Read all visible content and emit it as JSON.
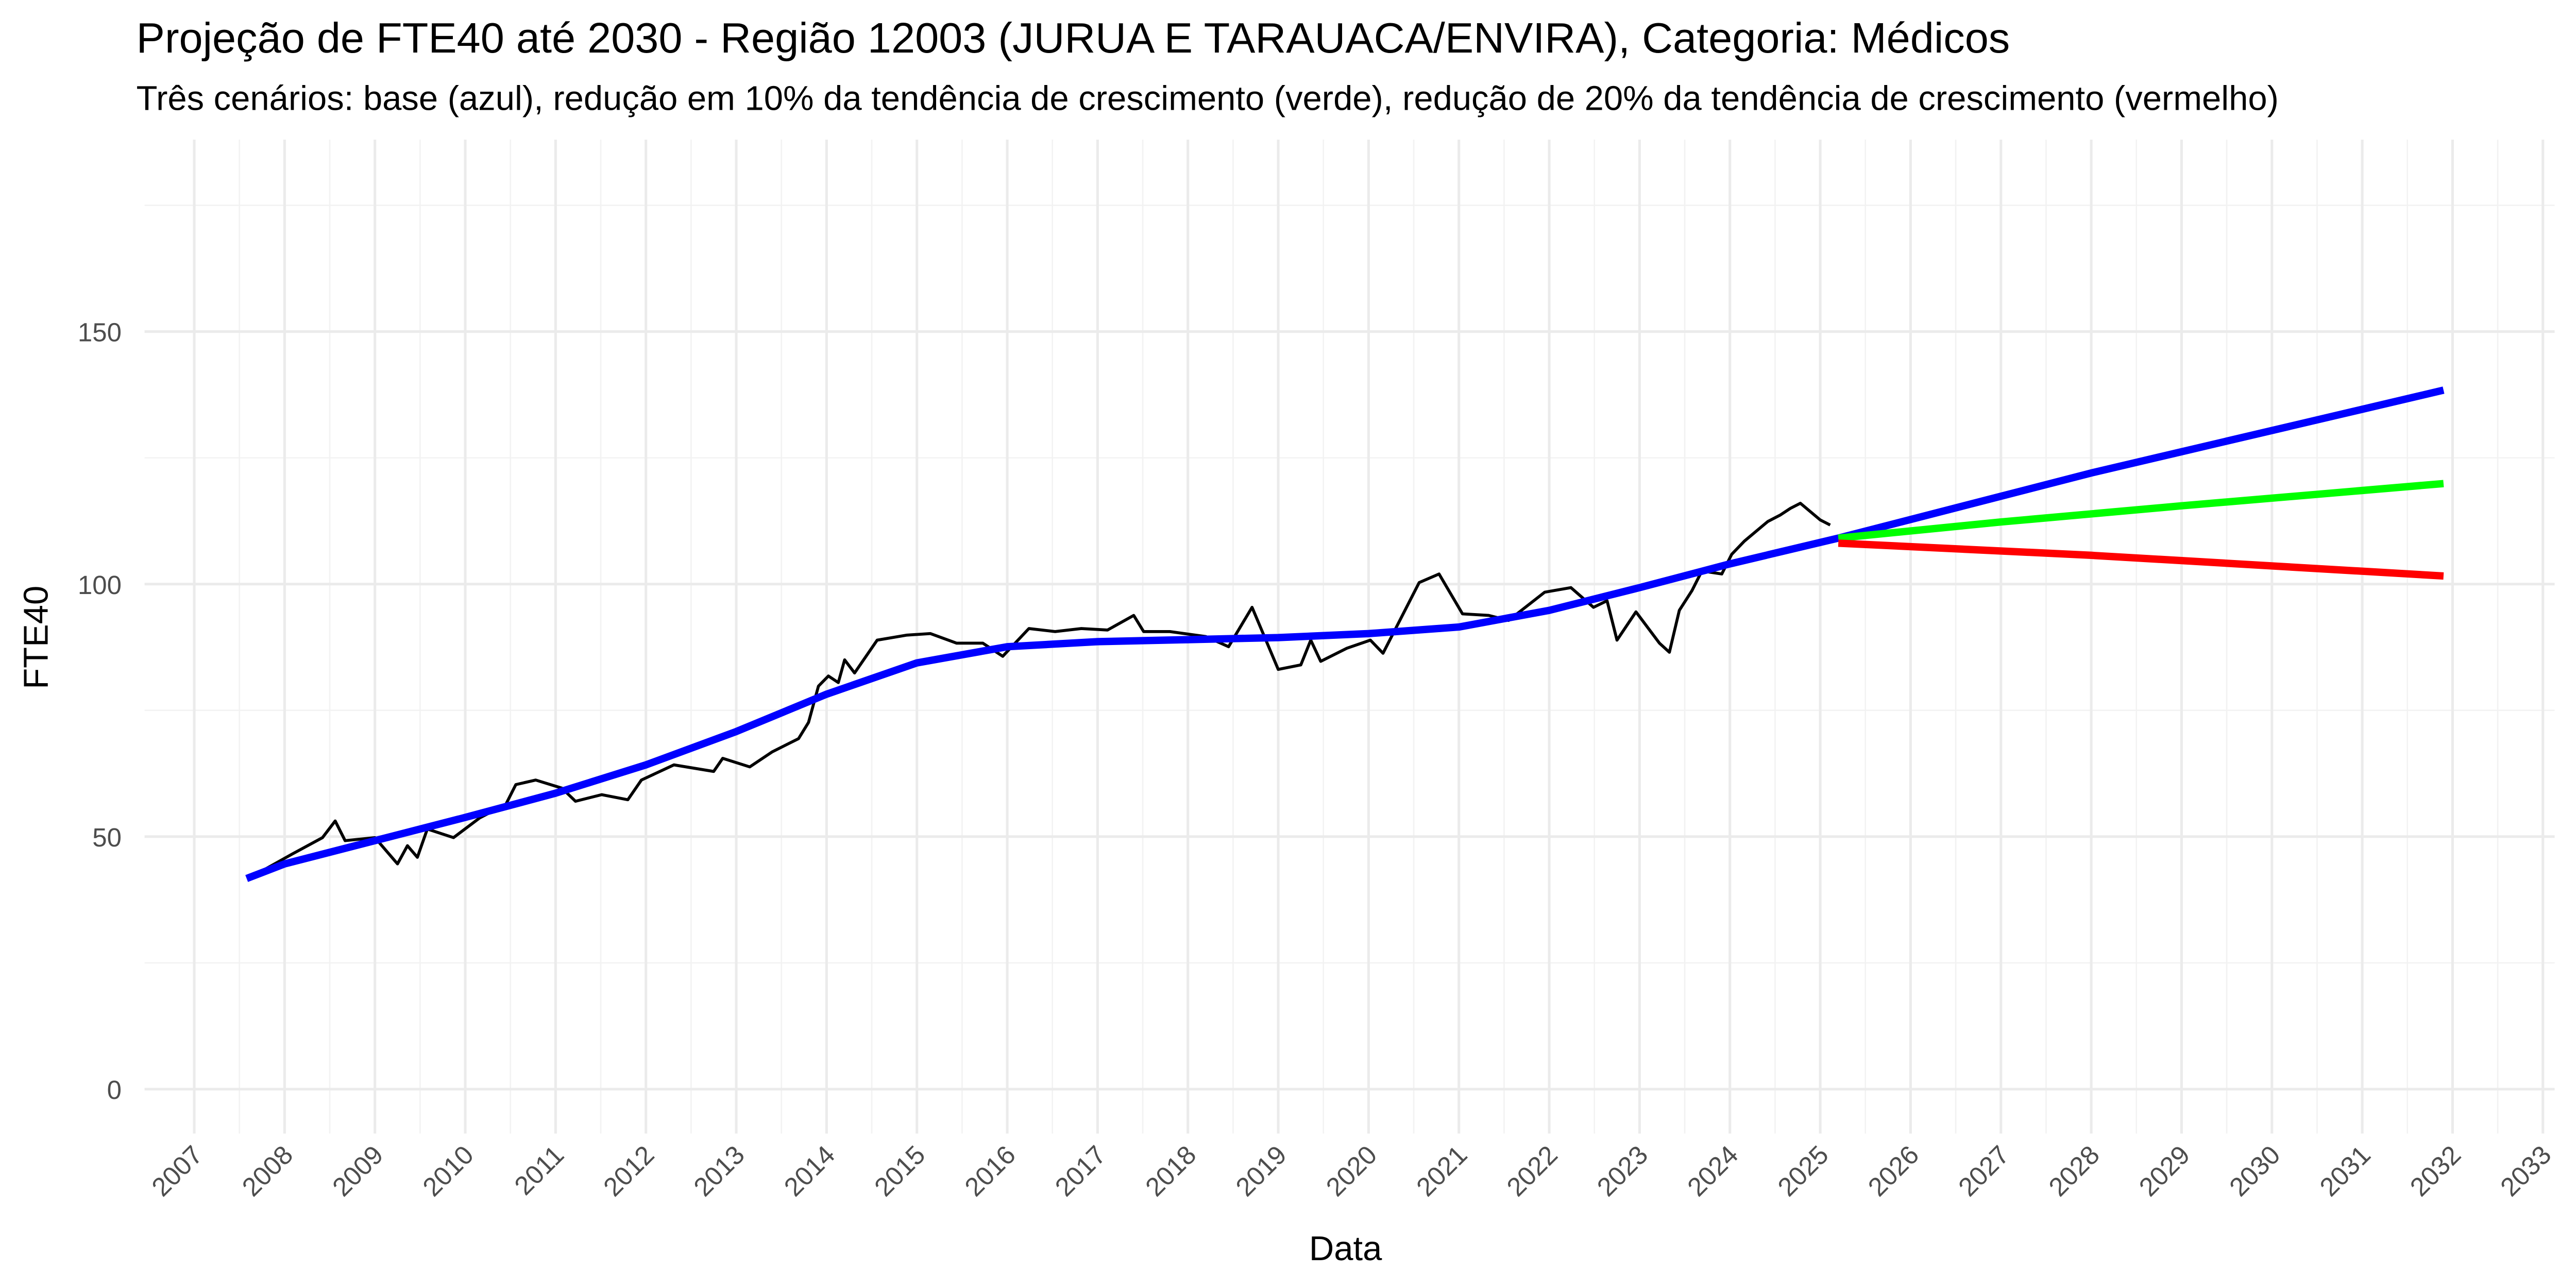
{
  "chart_data": {
    "type": "line",
    "title": "Projeção de FTE40 até 2030 - Região 12003 (JURUA E TARAUACA/ENVIRA), Categoria: Médicos",
    "subtitle": "Três cenários: base (azul), redução em 10% da tendência de crescimento (verde), redução de 20% da tendência de crescimento (vermelho)",
    "x_label": "Data",
    "y_label": "FTE40",
    "xlim": [
      2006.45,
      2033.13
    ],
    "xticks": [
      2007,
      2008,
      2009,
      2010,
      2011,
      2012,
      2013,
      2014,
      2015,
      2016,
      2017,
      2018,
      2019,
      2020,
      2021,
      2022,
      2023,
      2024,
      2025,
      2026,
      2027,
      2028,
      2029,
      2030,
      2031,
      2032,
      2033
    ],
    "ylim": [
      -8.8,
      188
    ],
    "yticks": [
      0,
      50,
      100,
      150
    ],
    "grid": true,
    "series": [
      {
        "color": "#000000",
        "width": 1.8,
        "x": [
          2007.76,
          2008.09,
          2008.42,
          2008.56,
          2008.67,
          2009.0,
          2009.25,
          2009.36,
          2009.47,
          2009.58,
          2009.87,
          2010.16,
          2010.45,
          2010.56,
          2010.78,
          2011.07,
          2011.22,
          2011.51,
          2011.8,
          2011.95,
          2012.31,
          2012.75,
          2012.85,
          2013.15,
          2013.4,
          2013.69,
          2013.8,
          2013.91,
          2014.02,
          2014.13,
          2014.2,
          2014.31,
          2014.56,
          2014.89,
          2015.15,
          2015.44,
          2015.73,
          2015.95,
          2016.24,
          2016.53,
          2016.82,
          2017.11,
          2017.4,
          2017.51,
          2017.8,
          2018.2,
          2018.45,
          2018.71,
          2019.0,
          2019.25,
          2019.36,
          2019.47,
          2019.76,
          2020.02,
          2020.16,
          2020.42,
          2020.56,
          2020.78,
          2021.04,
          2021.33,
          2021.55,
          2021.95,
          2022.24,
          2022.49,
          2022.64,
          2022.75,
          2022.96,
          2023.22,
          2023.33,
          2023.44,
          2023.58,
          2023.69,
          2023.91,
          2024.02,
          2024.16,
          2024.42,
          2024.56,
          2024.67,
          2024.78,
          2025.0,
          2025.11
        ],
        "values": [
          43.3,
          46.6,
          49.8,
          53.1,
          49.2,
          49.8,
          44.6,
          48.2,
          45.9,
          51.5,
          49.8,
          53.7,
          56.4,
          60.3,
          61.2,
          59.6,
          57.0,
          58.3,
          57.3,
          61.2,
          64.2,
          62.9,
          65.5,
          63.8,
          66.8,
          69.4,
          72.6,
          79.8,
          81.8,
          80.5,
          85.0,
          82.4,
          88.9,
          89.9,
          90.2,
          88.3,
          88.3,
          85.7,
          91.2,
          90.6,
          91.2,
          90.9,
          93.8,
          90.6,
          90.6,
          89.6,
          87.6,
          95.4,
          83.1,
          84.0,
          88.9,
          84.7,
          87.3,
          88.9,
          86.3,
          95.4,
          100.3,
          102.0,
          94.1,
          93.8,
          92.8,
          98.4,
          99.3,
          95.4,
          96.7,
          88.9,
          94.5,
          88.3,
          86.5,
          94.8,
          98.7,
          102.6,
          102.0,
          105.9,
          108.5,
          112.4,
          113.7,
          115.0,
          116.0,
          112.7,
          111.7
        ]
      },
      {
        "color": "#0000ff",
        "width": 4.5,
        "x": [
          2007.58,
          2008,
          2009,
          2010,
          2011,
          2012,
          2013,
          2014,
          2015,
          2016,
          2017,
          2018,
          2019,
          2020,
          2021,
          2022,
          2023,
          2024,
          2025.2,
          2028,
          2031.9
        ],
        "values": [
          41.7,
          44.6,
          49.2,
          53.8,
          58.6,
          64.2,
          70.8,
          78.2,
          84.4,
          87.6,
          88.6,
          89.0,
          89.4,
          90.2,
          91.5,
          94.8,
          99.3,
          104.0,
          109.1,
          122.0,
          138.4
        ]
      },
      {
        "color": "#00ff00",
        "width": 4.5,
        "x": [
          2025.2,
          2027,
          2029,
          2031.9
        ],
        "values": [
          109.1,
          112.3,
          115.5,
          119.9
        ]
      },
      {
        "color": "#ff0000",
        "width": 4.5,
        "x": [
          2025.2,
          2028,
          2031.9
        ],
        "values": [
          108.1,
          105.7,
          101.6
        ]
      }
    ]
  }
}
